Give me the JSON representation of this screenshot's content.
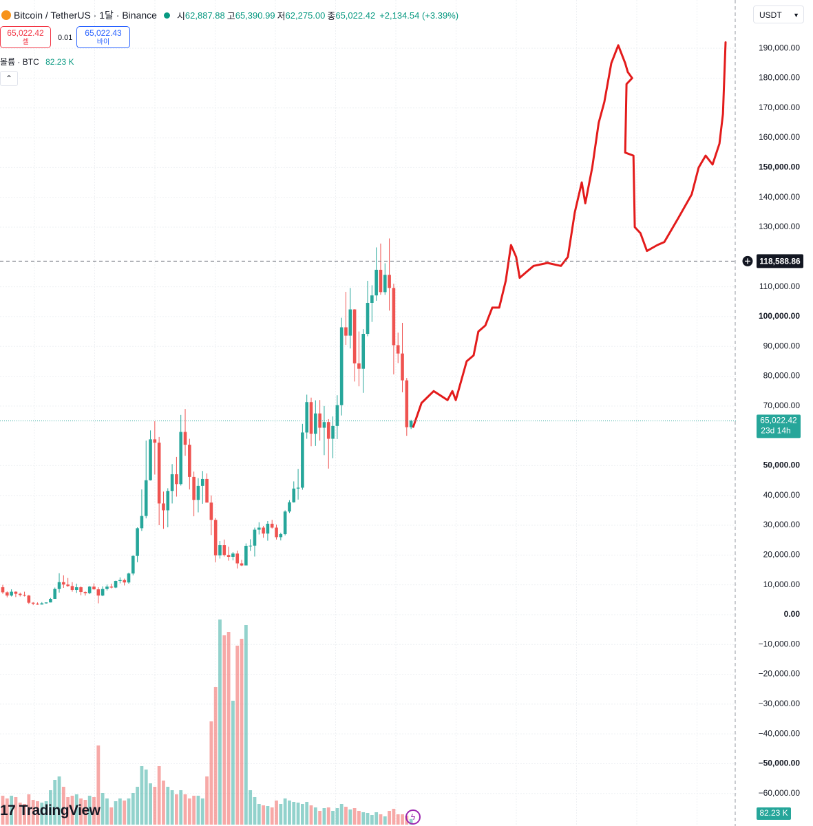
{
  "header": {
    "symbol": "Bitcoin / TetherUS · 1달 · Binance",
    "o_label": "시",
    "o": "62,887.88",
    "h_label": "고",
    "h": "65,390.99",
    "l_label": "저",
    "l": "62,275.00",
    "c_label": "종",
    "c": "65,022.42",
    "change": "+2,134.54 (+3.39%)",
    "sell_price": "65,022.42",
    "sell_label": "셀",
    "spread": "0.01",
    "buy_price": "65,022.43",
    "buy_label": "바이",
    "volume_title": "볼륨 · BTC",
    "currency": "USDT",
    "logo": "TradingView"
  },
  "chart_data": {
    "type": "candlestick",
    "up_color": "#26a69a",
    "down_color": "#ef5350",
    "ylim": [
      -70900,
      206200
    ],
    "yticks": [
      {
        "value": 190000,
        "label": "190,000.00"
      },
      {
        "value": 180000,
        "label": "180,000.00"
      },
      {
        "value": 170000,
        "label": "170,000.00"
      },
      {
        "value": 160000,
        "label": "160,000.00"
      },
      {
        "value": 150000,
        "label": "150,000.00"
      },
      {
        "value": 140000,
        "label": "140,000.00"
      },
      {
        "value": 130000,
        "label": "130,000.00"
      },
      {
        "value": 110000,
        "label": "110,000.00"
      },
      {
        "value": 100000,
        "label": "100,000.00"
      },
      {
        "value": 90000,
        "label": "90,000.00"
      },
      {
        "value": 80000,
        "label": "80,000.00"
      },
      {
        "value": 70000,
        "label": "70,000.00"
      },
      {
        "value": 50000,
        "label": "50,000.00"
      },
      {
        "value": 40000,
        "label": "40,000.00"
      },
      {
        "value": 30000,
        "label": "30,000.00"
      },
      {
        "value": 20000,
        "label": "20,000.00"
      },
      {
        "value": 10000,
        "label": "10,000.00"
      },
      {
        "value": 0,
        "label": "0.00"
      },
      {
        "value": -10000,
        "label": "−10,000.00"
      },
      {
        "value": -20000,
        "label": "−20,000.00"
      },
      {
        "value": -30000,
        "label": "−30,000.00"
      },
      {
        "value": -40000,
        "label": "−40,000.00"
      },
      {
        "value": -50000,
        "label": "−50,000.00"
      },
      {
        "value": -60000,
        "label": "−60,000.00"
      }
    ],
    "grid": true,
    "ohlc": [
      [
        9200,
        10000,
        7000,
        7500
      ],
      [
        7500,
        7800,
        5800,
        6400
      ],
      [
        6400,
        8500,
        6100,
        7700
      ],
      [
        7700,
        7800,
        5900,
        7000
      ],
      [
        7000,
        7400,
        6100,
        6600
      ],
      [
        6600,
        7700,
        6100,
        6400
      ],
      [
        6400,
        6600,
        3600,
        4000
      ],
      [
        4000,
        4200,
        3200,
        3700
      ],
      [
        3700,
        4100,
        3300,
        3400
      ],
      [
        3400,
        4200,
        3400,
        3800
      ],
      [
        3800,
        4100,
        3700,
        4100
      ],
      [
        4100,
        5600,
        4100,
        5300
      ],
      [
        5300,
        9100,
        5300,
        8600
      ],
      [
        8600,
        13900,
        7400,
        10900
      ],
      [
        10900,
        13200,
        9000,
        10100
      ],
      [
        10100,
        12300,
        9300,
        9600
      ],
      [
        9600,
        10900,
        7700,
        8300
      ],
      [
        8300,
        10400,
        7300,
        9200
      ],
      [
        9200,
        9500,
        6500,
        7600
      ],
      [
        7600,
        7800,
        6400,
        7200
      ],
      [
        7200,
        9600,
        6900,
        9400
      ],
      [
        9400,
        10500,
        8400,
        8500
      ],
      [
        8500,
        9200,
        3800,
        6400
      ],
      [
        6400,
        9500,
        6200,
        8600
      ],
      [
        8600,
        10100,
        8100,
        9400
      ],
      [
        9400,
        10400,
        8800,
        9100
      ],
      [
        9100,
        11400,
        8900,
        11300
      ],
      [
        11300,
        12500,
        10500,
        11600
      ],
      [
        11600,
        12100,
        9800,
        10800
      ],
      [
        10800,
        14100,
        10400,
        13800
      ],
      [
        13800,
        19900,
        13200,
        19700
      ],
      [
        19700,
        29300,
        17600,
        29000
      ],
      [
        29000,
        42000,
        28100,
        33100
      ],
      [
        33100,
        58400,
        32300,
        45100
      ],
      [
        45100,
        61800,
        45000,
        58800
      ],
      [
        58800,
        64900,
        47000,
        57700
      ],
      [
        57700,
        59600,
        30000,
        37300
      ],
      [
        37300,
        41300,
        28800,
        35000
      ],
      [
        35000,
        42400,
        29300,
        41500
      ],
      [
        41500,
        50500,
        37300,
        47100
      ],
      [
        47100,
        52900,
        39600,
        43800
      ],
      [
        43800,
        67000,
        43300,
        61300
      ],
      [
        61300,
        69000,
        53300,
        57000
      ],
      [
        57000,
        59000,
        42000,
        46200
      ],
      [
        46200,
        48000,
        33000,
        38500
      ],
      [
        38500,
        45800,
        34300,
        43200
      ],
      [
        43200,
        48200,
        37200,
        45500
      ],
      [
        45500,
        47400,
        37600,
        37600
      ],
      [
        37600,
        40000,
        26700,
        31800
      ],
      [
        31800,
        32400,
        17600,
        19900
      ],
      [
        19900,
        24700,
        18800,
        23300
      ],
      [
        23300,
        25200,
        19500,
        20000
      ],
      [
        20000,
        22800,
        18100,
        19400
      ],
      [
        19400,
        21000,
        18200,
        20500
      ],
      [
        20500,
        21500,
        15500,
        17200
      ],
      [
        17200,
        18400,
        16300,
        16500
      ],
      [
        16500,
        23900,
        16500,
        23100
      ],
      [
        23100,
        25300,
        21400,
        23150
      ],
      [
        23150,
        29200,
        19500,
        28500
      ],
      [
        28500,
        31000,
        26900,
        29200
      ],
      [
        29200,
        29800,
        25800,
        27200
      ],
      [
        27200,
        31400,
        24800,
        30500
      ],
      [
        30500,
        31800,
        28900,
        29200
      ],
      [
        29200,
        30200,
        25200,
        26000
      ],
      [
        26000,
        27500,
        24900,
        27000
      ],
      [
        27000,
        35000,
        26600,
        34600
      ],
      [
        34600,
        38400,
        34100,
        37700
      ],
      [
        37700,
        44700,
        37600,
        42300
      ],
      [
        42300,
        48900,
        38600,
        42600
      ],
      [
        42600,
        64000,
        41900,
        61100
      ],
      [
        61100,
        73800,
        59000,
        71300
      ],
      [
        71300,
        72800,
        56500,
        60700
      ],
      [
        60700,
        71900,
        56600,
        67500
      ],
      [
        67500,
        72000,
        58400,
        62700
      ],
      [
        62700,
        70000,
        53500,
        64600
      ],
      [
        64600,
        65600,
        49000,
        59000
      ],
      [
        59000,
        66500,
        52500,
        63300
      ],
      [
        63300,
        73600,
        58900,
        70300
      ],
      [
        70300,
        99600,
        66800,
        96400
      ],
      [
        96400,
        108300,
        90500,
        93600
      ],
      [
        93600,
        109600,
        89300,
        102400
      ],
      [
        102400,
        102500,
        78200,
        84300
      ],
      [
        84300,
        95000,
        76600,
        82500
      ],
      [
        82500,
        95800,
        74400,
        94200
      ],
      [
        94200,
        112000,
        93400,
        104600
      ],
      [
        104600,
        110500,
        98200,
        107100
      ],
      [
        107100,
        123200,
        105300,
        115700
      ],
      [
        115700,
        124500,
        107300,
        108200
      ],
      [
        108200,
        117900,
        107300,
        114000
      ],
      [
        114000,
        126200,
        102000,
        109600
      ],
      [
        109600,
        111000,
        80600,
        90400
      ],
      [
        90400,
        94600,
        84400,
        87600
      ],
      [
        87600,
        97900,
        74600,
        78600
      ],
      [
        78600,
        79400,
        60000,
        62887.88
      ],
      [
        62887.88,
        65390.99,
        62275,
        65022.42
      ]
    ],
    "volume_lim": [
      0,
      3000
    ],
    "volume": [
      420,
      380,
      420,
      400,
      320,
      300,
      440,
      360,
      340,
      320,
      340,
      500,
      650,
      700,
      550,
      400,
      420,
      440,
      380,
      360,
      420,
      400,
      1150,
      460,
      380,
      250,
      340,
      380,
      350,
      380,
      460,
      550,
      850,
      800,
      600,
      550,
      850,
      640,
      550,
      500,
      440,
      500,
      440,
      380,
      420,
      420,
      380,
      700,
      1500,
      2000,
      2980,
      2750,
      2800,
      1800,
      2600,
      2700,
      2900,
      500,
      400,
      300,
      280,
      270,
      250,
      350,
      300,
      380,
      350,
      330,
      320,
      300,
      330,
      280,
      250,
      200,
      240,
      250,
      200,
      240,
      300,
      260,
      220,
      240,
      200,
      180,
      170,
      140,
      180,
      150,
      120,
      200,
      230,
      150,
      150,
      130,
      82.23
    ],
    "volume_label": "82.23 K",
    "last_price": {
      "value": 65022.42,
      "label": "65,022.42",
      "countdown": "23d 14h",
      "color": "#26a69a"
    },
    "crosshair": {
      "value": 118588.86,
      "label": "118,588.86"
    },
    "drawing": {
      "color": "#e31b1b",
      "x": [
        94.5,
        96.4,
        99.2,
        102.4,
        103.5,
        104.3,
        106.8,
        108.4,
        109.5,
        111.1,
        112.7,
        114.3,
        115.8,
        117,
        118.2,
        119,
        120.6,
        122.2,
        125.4,
        128.5,
        130.1,
        131.7,
        133.3,
        134.1,
        135.7,
        137.2,
        138.5,
        140.1,
        141.7,
        143.3,
        143.9,
        144.9,
        143.6,
        143.3,
        145.2,
        145.5,
        146.8,
        148.3,
        150.7,
        152.3,
        155.5,
        158.6,
        160.2,
        161.8,
        163.4,
        165,
        165.8,
        166.4
      ],
      "y": [
        63000,
        71000,
        75000,
        72000,
        75000,
        72000,
        85000,
        87000,
        95000,
        97000,
        103000,
        103000,
        112000,
        124000,
        120000,
        113000,
        115000,
        117000,
        118000,
        117000,
        120000,
        135000,
        145000,
        138000,
        150000,
        165000,
        172000,
        185000,
        191000,
        185000,
        182000,
        180000,
        178000,
        155000,
        154000,
        130000,
        128000,
        122000,
        124000,
        125000,
        133000,
        141000,
        150000,
        154000,
        151000,
        158000,
        168000,
        192000
      ]
    }
  }
}
